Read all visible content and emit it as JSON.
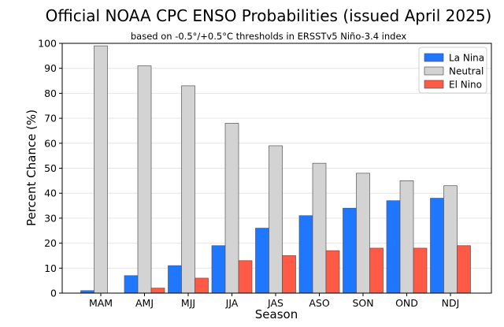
{
  "chart_data": {
    "type": "bar",
    "title": "Official NOAA CPC ENSO Probabilities (issued April 2025)",
    "subtitle": "based on -0.5°/+0.5°C thresholds in ERSSTv5 Niño-3.4 index",
    "xlabel": "Season",
    "ylabel": "Percent Chance (%)",
    "ylim": [
      0,
      100
    ],
    "yticks": [
      0,
      10,
      20,
      30,
      40,
      50,
      60,
      70,
      80,
      90,
      100
    ],
    "grid": true,
    "legend_position": "top-right",
    "categories": [
      "MAM",
      "AMJ",
      "MJJ",
      "JJA",
      "JAS",
      "ASO",
      "SON",
      "OND",
      "NDJ"
    ],
    "series": [
      {
        "name": "La Nina",
        "color": "#1f77ff",
        "values": [
          1,
          7,
          11,
          19,
          26,
          31,
          34,
          37,
          38
        ]
      },
      {
        "name": "Neutral",
        "color": "#d3d3d3",
        "values": [
          99,
          91,
          83,
          68,
          59,
          52,
          48,
          45,
          43
        ]
      },
      {
        "name": "El Nino",
        "color": "#ff5a45",
        "values": [
          0,
          2,
          6,
          13,
          15,
          17,
          18,
          18,
          19
        ]
      }
    ]
  }
}
